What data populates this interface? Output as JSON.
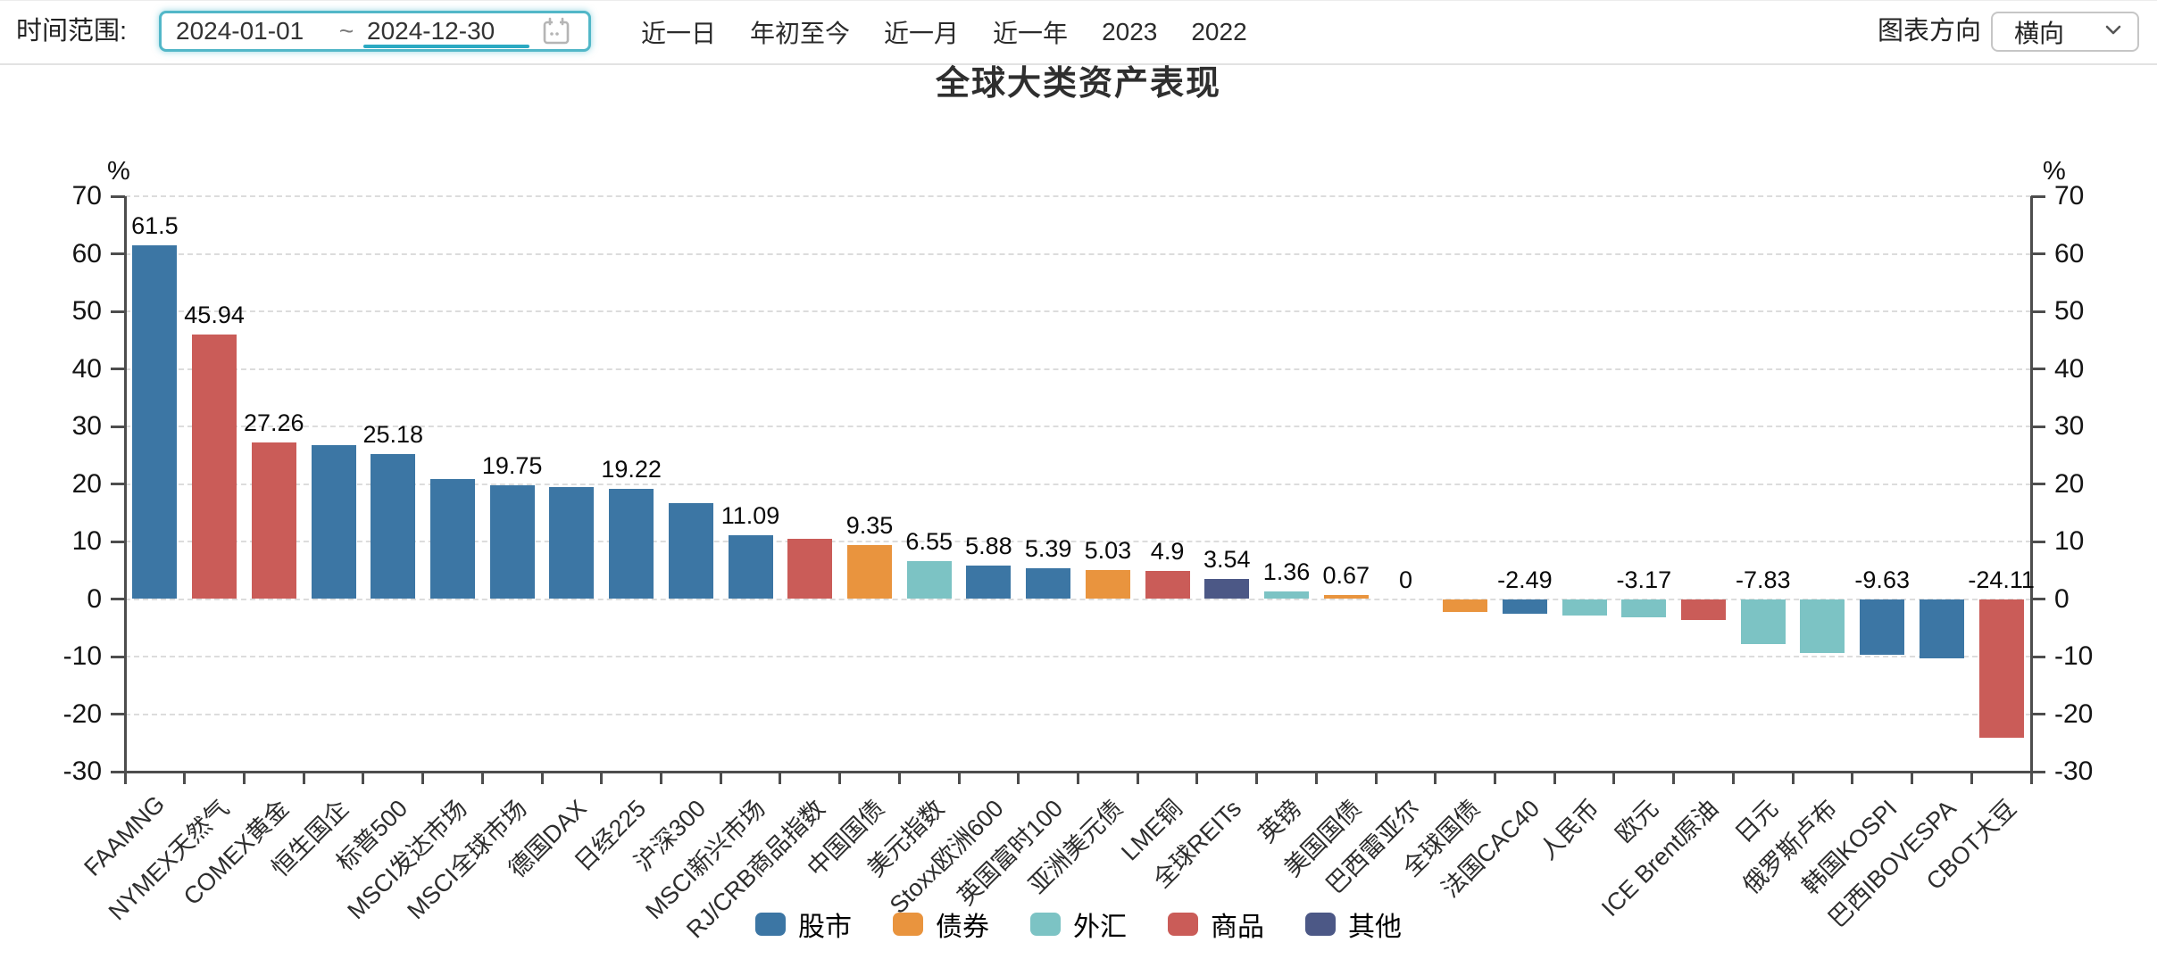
{
  "toolbar": {
    "time_range_label": "时间范围:",
    "date_start": "2024-01-01",
    "date_separator": "~",
    "date_end": "2024-12-30",
    "quick_ranges": [
      "近一日",
      "年初至今",
      "近一月",
      "近一年",
      "2023",
      "2022"
    ],
    "chart_direction_label": "图表方向",
    "chart_direction_value": "横向"
  },
  "chart_data": {
    "type": "bar",
    "title": "全球大类资产表现",
    "unit": "%",
    "ylim": [
      -30,
      70
    ],
    "ytick_interval": 10,
    "grid": "dashed horizontal",
    "legend_position": "bottom",
    "xlabel_rotation": 45,
    "legend": [
      {
        "label": "股市",
        "color": "#3C76A4"
      },
      {
        "label": "债券",
        "color": "#E9943E"
      },
      {
        "label": "外汇",
        "color": "#7CC3C4"
      },
      {
        "label": "商品",
        "color": "#CA5C58"
      },
      {
        "label": "其他",
        "color": "#4C5886"
      }
    ],
    "bars": [
      {
        "category": "FAAMNG",
        "value": 61.5,
        "group": "股市",
        "label": "61.5"
      },
      {
        "category": "NYMEX天然气",
        "value": 45.94,
        "group": "商品",
        "label": "45.94"
      },
      {
        "category": "COMEX黄金",
        "value": 27.26,
        "group": "商品",
        "label": "27.26"
      },
      {
        "category": "恒生国企",
        "value": 26.7,
        "group": "股市",
        "label": ""
      },
      {
        "category": "标普500",
        "value": 25.18,
        "group": "股市",
        "label": "25.18"
      },
      {
        "category": "MSCI发达市场",
        "value": 20.9,
        "group": "股市",
        "label": ""
      },
      {
        "category": "MSCI全球市场",
        "value": 19.75,
        "group": "股市",
        "label": "19.75"
      },
      {
        "category": "德国DAX",
        "value": 19.45,
        "group": "股市",
        "label": ""
      },
      {
        "category": "日经225",
        "value": 19.22,
        "group": "股市",
        "label": "19.22"
      },
      {
        "category": "沪深300",
        "value": 16.6,
        "group": "股市",
        "label": ""
      },
      {
        "category": "MSCI新兴市场",
        "value": 11.09,
        "group": "股市",
        "label": "11.09"
      },
      {
        "category": "RJ/CRB商品指数",
        "value": 10.5,
        "group": "商品",
        "label": ""
      },
      {
        "category": "中国国债",
        "value": 9.35,
        "group": "债券",
        "label": "9.35"
      },
      {
        "category": "美元指数",
        "value": 6.55,
        "group": "外汇",
        "label": "6.55"
      },
      {
        "category": "Stoxx欧洲600",
        "value": 5.88,
        "group": "股市",
        "label": "5.88"
      },
      {
        "category": "英国富时100",
        "value": 5.39,
        "group": "股市",
        "label": "5.39"
      },
      {
        "category": "亚洲美元债",
        "value": 5.03,
        "group": "债券",
        "label": "5.03"
      },
      {
        "category": "LME铜",
        "value": 4.9,
        "group": "商品",
        "label": "4.9"
      },
      {
        "category": "全球REITs",
        "value": 3.54,
        "group": "其他",
        "label": "3.54"
      },
      {
        "category": "英镑",
        "value": 1.36,
        "group": "外汇",
        "label": "1.36"
      },
      {
        "category": "美国国债",
        "value": 0.67,
        "group": "债券",
        "label": "0.67"
      },
      {
        "category": "巴西雷亚尔",
        "value": 0,
        "group": "外汇",
        "label": "0"
      },
      {
        "category": "全球国债",
        "value": -2.2,
        "group": "债券",
        "label": ""
      },
      {
        "category": "法国CAC40",
        "value": -2.49,
        "group": "股市",
        "label": "-2.49"
      },
      {
        "category": "人民币",
        "value": -2.8,
        "group": "外汇",
        "label": ""
      },
      {
        "category": "欧元",
        "value": -3.17,
        "group": "外汇",
        "label": "-3.17"
      },
      {
        "category": "ICE Brent原油",
        "value": -3.7,
        "group": "商品",
        "label": ""
      },
      {
        "category": "日元",
        "value": -7.83,
        "group": "外汇",
        "label": "-7.83"
      },
      {
        "category": "俄罗斯卢布",
        "value": -9.4,
        "group": "外汇",
        "label": ""
      },
      {
        "category": "韩国KOSPI",
        "value": -9.63,
        "group": "股市",
        "label": "-9.63"
      },
      {
        "category": "巴西IBOVESPA",
        "value": -10.36,
        "group": "股市",
        "label": ""
      },
      {
        "category": "CBOT大豆",
        "value": -24.11,
        "group": "商品",
        "label": "-24.11"
      }
    ]
  }
}
